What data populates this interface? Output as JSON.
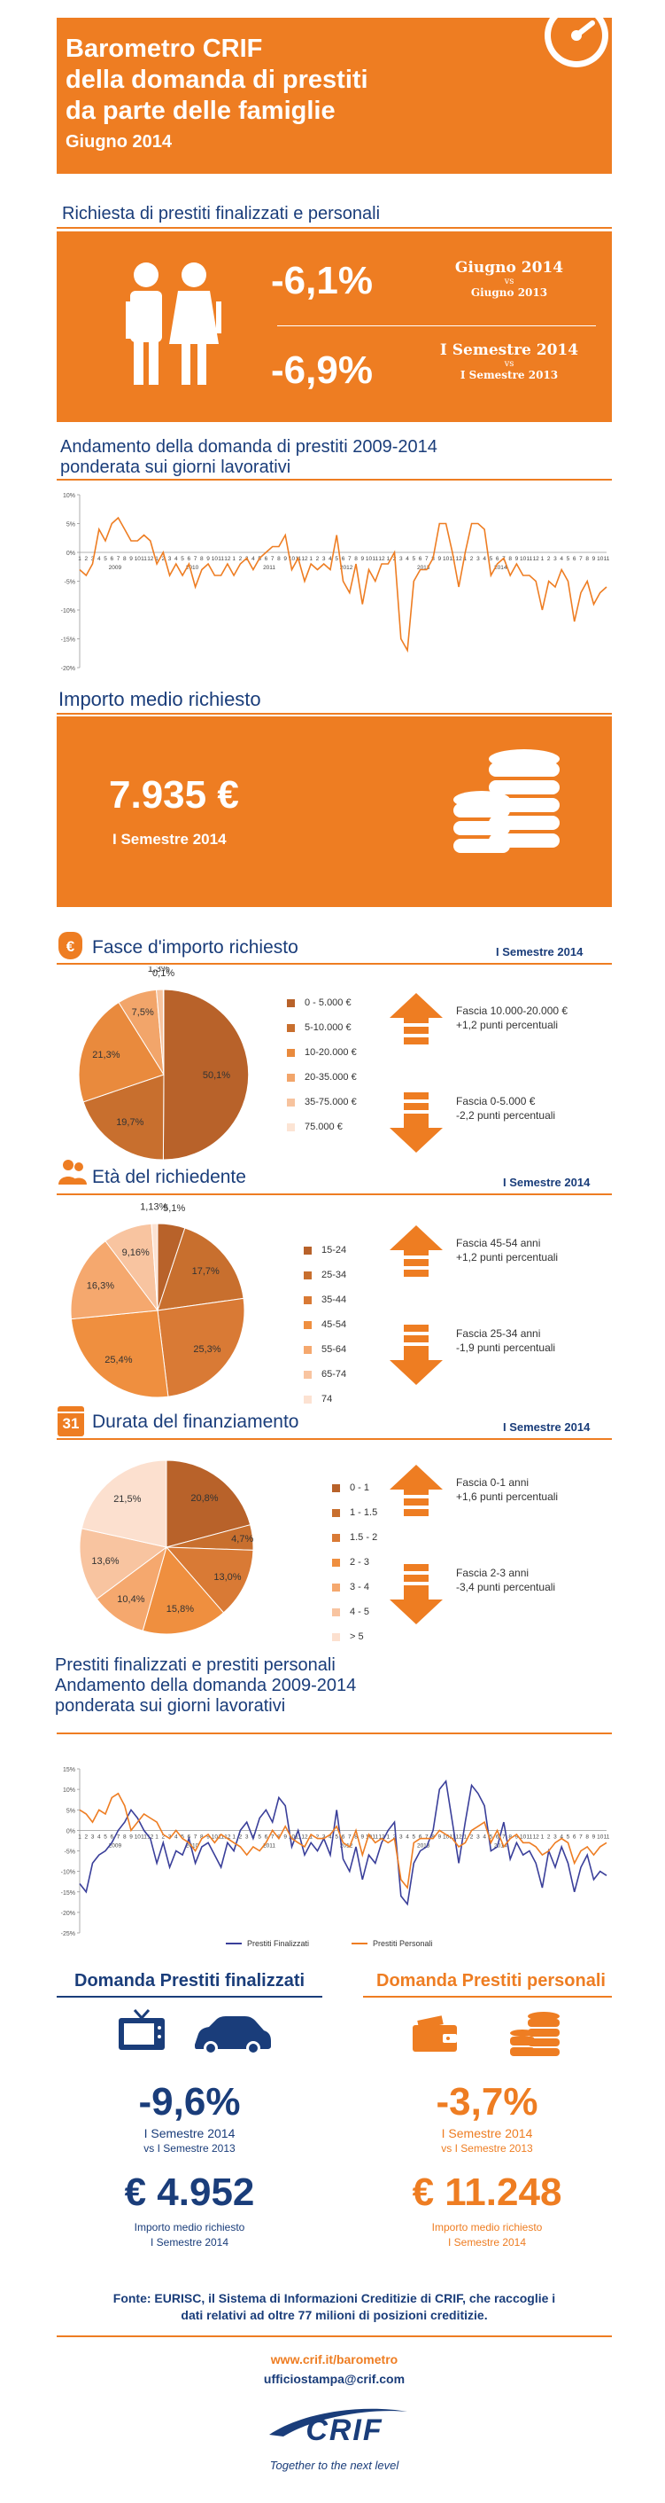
{
  "header": {
    "title_lines": [
      "Barometro CRIF",
      "della domanda di prestiti",
      "da parte delle famiglie"
    ],
    "period": "Giugno 2014"
  },
  "request_section": {
    "title": "Richiesta di prestiti finalizzati e personali",
    "row1": {
      "value": "-6,1%",
      "label": "Giugno 2014",
      "vs": "vs",
      "compare": "Giugno 2013"
    },
    "row2": {
      "value": "-6,9%",
      "label": "I Semestre 2014",
      "vs": "vs",
      "compare": "I Semestre 2013"
    }
  },
  "trend_title": [
    "Andamento della domanda di prestiti 2009-2014",
    "ponderata sui giorni lavorativi"
  ],
  "average_section": {
    "title": "Importo medio richiesto",
    "amount": "7.935 €",
    "period": "I Semestre 2014"
  },
  "amount_bands": {
    "title": "Fasce d'importo richiesto",
    "semester": "I Semestre 2014",
    "notes": [
      {
        "line1": "Fascia 10.000-20.000  €",
        "line2": "+1,2  punti percentuali"
      },
      {
        "line1": "Fascia 0-5.000  €",
        "line2": "-2,2 punti percentuali"
      }
    ]
  },
  "age_section": {
    "title": "Età del richiedente",
    "semester": "I Semestre 2014",
    "notes": [
      {
        "line1": "Fascia 45-54  anni",
        "line2": "+1,2  punti percentuali"
      },
      {
        "line1": "Fascia 25-34  anni",
        "line2": "-1,9 punti percentuali"
      }
    ]
  },
  "duration_section": {
    "title": "Durata del finanziamento",
    "semester": "I Semestre 2014",
    "calendar_day": "31",
    "notes": [
      {
        "line1": "Fascia 0-1 anni",
        "line2": "+1,6  punti percentuali"
      },
      {
        "line1": "Fascia 2-3 anni",
        "line2": "-3,4 punti percentuali"
      }
    ]
  },
  "trend2_title": [
    "Prestiti finalizzati e prestiti personali",
    "Andamento della domanda 2009-2014",
    "ponderata sui giorni lavorativi"
  ],
  "finalizzati": {
    "title": "Domanda Prestiti finalizzati",
    "value": "-9,6%",
    "sub1": "I Semestre 2014",
    "sub2": "vs  I Semestre 2013",
    "amount": "€ 4.952",
    "amount_sub1": "Importo medio richiesto",
    "amount_sub2": "I Semestre 2014"
  },
  "personali": {
    "title": "Domanda Prestiti personali",
    "value": "-3,7%",
    "sub1": "I Semestre 2014",
    "sub2": "vs  I Semestre 2013",
    "amount": "€ 11.248",
    "amount_sub1": "Importo medio richiesto",
    "amount_sub2": "I Semestre 2014"
  },
  "footer": {
    "source_line1": "Fonte: EURISC, il Sistema di Informazioni Creditizie di CRIF, che raccoglie i",
    "source_line2": "dati relativi ad oltre 77 milioni di posizioni creditizie.",
    "link": "www.crif.it/barometro",
    "email": "ufficiostampa@crif.com",
    "logo_text": "CRIF",
    "tagline": "Together to the next level"
  },
  "colors": {
    "orange": "#ee7d22",
    "navy": "#1a3d7a",
    "line_finalizzati": "#3a3f9a",
    "line_personali": "#ee7d22"
  },
  "chart_data": [
    {
      "type": "line",
      "name": "trend_total",
      "ylim": [
        -20,
        10
      ],
      "yticks": [
        "10%",
        "5%",
        "0%",
        "-5%",
        "-10%",
        "-15%",
        "-20%"
      ],
      "years": [
        "2009",
        "2010",
        "2011",
        "2012",
        "2013",
        "2014"
      ],
      "values": [
        -3,
        -4,
        -2,
        4,
        2,
        5,
        6,
        4,
        2,
        2,
        3,
        2,
        -2,
        0,
        -4,
        -2,
        -4,
        -2,
        -6,
        -3,
        -2,
        -4,
        -4,
        -2,
        -4,
        -2,
        -1,
        -3,
        -1,
        0,
        1,
        1,
        3,
        -3,
        -1,
        -5,
        -2,
        -3,
        -2,
        -3,
        3,
        -5,
        -7,
        -2,
        -9,
        -3,
        -5,
        -2,
        -2,
        0,
        -15,
        -17,
        -5,
        -3,
        -3,
        -1,
        5,
        5,
        0,
        -6,
        0,
        5,
        5,
        4,
        -4,
        -2,
        -1,
        -4,
        -2,
        -4,
        -4,
        -5,
        -10,
        -5,
        -6,
        -3,
        -5,
        -12,
        -7,
        -5,
        -9,
        -7,
        -6
      ]
    },
    {
      "type": "pie",
      "name": "amount_bands",
      "labels": [
        "0 - 5.000 €",
        "5-10.000 €",
        "10-20.000 €",
        "20-35.000 €",
        "35-75.000 €",
        "75.000 €"
      ],
      "values": [
        50.1,
        19.7,
        21.3,
        7.5,
        1.3,
        0.1
      ],
      "value_labels": [
        "50,1%",
        "19,7%",
        "21,3%",
        "7,5%",
        "1,3%",
        "0,1%"
      ],
      "colors": [
        "#b8622a",
        "#c86f2e",
        "#e98a3d",
        "#f2a56a",
        "#f7c39e",
        "#fce4d4"
      ]
    },
    {
      "type": "pie",
      "name": "age",
      "labels": [
        "15-24",
        "25-34",
        "35-44",
        "45-54",
        "55-64",
        "65-74",
        "74"
      ],
      "values": [
        5.1,
        17.7,
        25.3,
        25.4,
        16.3,
        9.16,
        1.13
      ],
      "value_labels": [
        "5,1%",
        "17,7%",
        "25,3%",
        "25,4%",
        "16,3%",
        "9,16%",
        "1,13%"
      ],
      "colors": [
        "#b8622a",
        "#c86f2e",
        "#d97a35",
        "#ef8f3f",
        "#f5a86e",
        "#f8c4a0",
        "#fce2d2"
      ]
    },
    {
      "type": "pie",
      "name": "duration",
      "labels": [
        "0 - 1",
        "1 - 1.5",
        "1.5 - 2",
        "2 - 3",
        "3 - 4",
        "4 - 5",
        "> 5"
      ],
      "values": [
        20.8,
        4.7,
        13.0,
        15.8,
        10.4,
        13.6,
        21.5
      ],
      "value_labels": [
        "20,8%",
        "4,7%",
        "13,0%",
        "15,8%",
        "10,4%",
        "13,6%",
        "21,5%"
      ],
      "colors": [
        "#b8622a",
        "#c86f2e",
        "#d97a35",
        "#ef8f3f",
        "#f5a86e",
        "#f8c4a0",
        "#fce0cf"
      ]
    },
    {
      "type": "line",
      "name": "trend_split",
      "ylim": [
        -25,
        15
      ],
      "yticks": [
        "15%",
        "10%",
        "5%",
        "0%",
        "-5%",
        "-10%",
        "-15%",
        "-20%",
        "-25%"
      ],
      "years": [
        "2009",
        "2010",
        "2011",
        "2012",
        "2013",
        "2014"
      ],
      "series": [
        {
          "name": "Prestiti Finalizzati",
          "values": [
            -13,
            -15,
            -8,
            -6,
            -5,
            -3,
            0,
            2,
            5,
            3,
            0,
            -2,
            -8,
            -3,
            -9,
            -5,
            -6,
            -2,
            -8,
            -4,
            -3,
            -6,
            -9,
            -3,
            -5,
            0,
            2,
            -2,
            3,
            5,
            2,
            8,
            6,
            -4,
            0,
            -6,
            -3,
            -5,
            -2,
            -6,
            5,
            -7,
            -10,
            -4,
            -12,
            -6,
            -8,
            -3,
            0,
            2,
            -16,
            -18,
            -8,
            -5,
            -4,
            0,
            10,
            12,
            2,
            -8,
            2,
            11,
            9,
            6,
            -5,
            -4,
            2,
            -7,
            -3,
            -6,
            -5,
            -8,
            -14,
            -5,
            -9,
            -4,
            -8,
            -15,
            -9,
            -6,
            -12,
            -10,
            -11
          ]
        },
        {
          "name": "Prestiti Personali",
          "values": [
            5,
            4,
            2,
            5,
            4,
            8,
            9,
            6,
            0,
            2,
            4,
            3,
            2,
            -1,
            -2,
            0,
            -2,
            -3,
            -5,
            -2,
            -1,
            -3,
            -1,
            -2,
            -3,
            -4,
            -6,
            -4,
            -5,
            -3,
            0,
            -2,
            1,
            -2,
            -3,
            -4,
            -1,
            -2,
            -2,
            -1,
            1,
            -3,
            -4,
            0,
            -6,
            -1,
            -3,
            -2,
            -3,
            -2,
            -12,
            -14,
            -3,
            -2,
            -2,
            -2,
            0,
            -1,
            -2,
            -4,
            -3,
            0,
            1,
            2,
            -3,
            0,
            -4,
            -2,
            -1,
            -3,
            -3,
            -4,
            -6,
            -5,
            -3,
            -2,
            -3,
            -8,
            -5,
            -4,
            -6,
            -4,
            -3
          ]
        }
      ]
    }
  ]
}
